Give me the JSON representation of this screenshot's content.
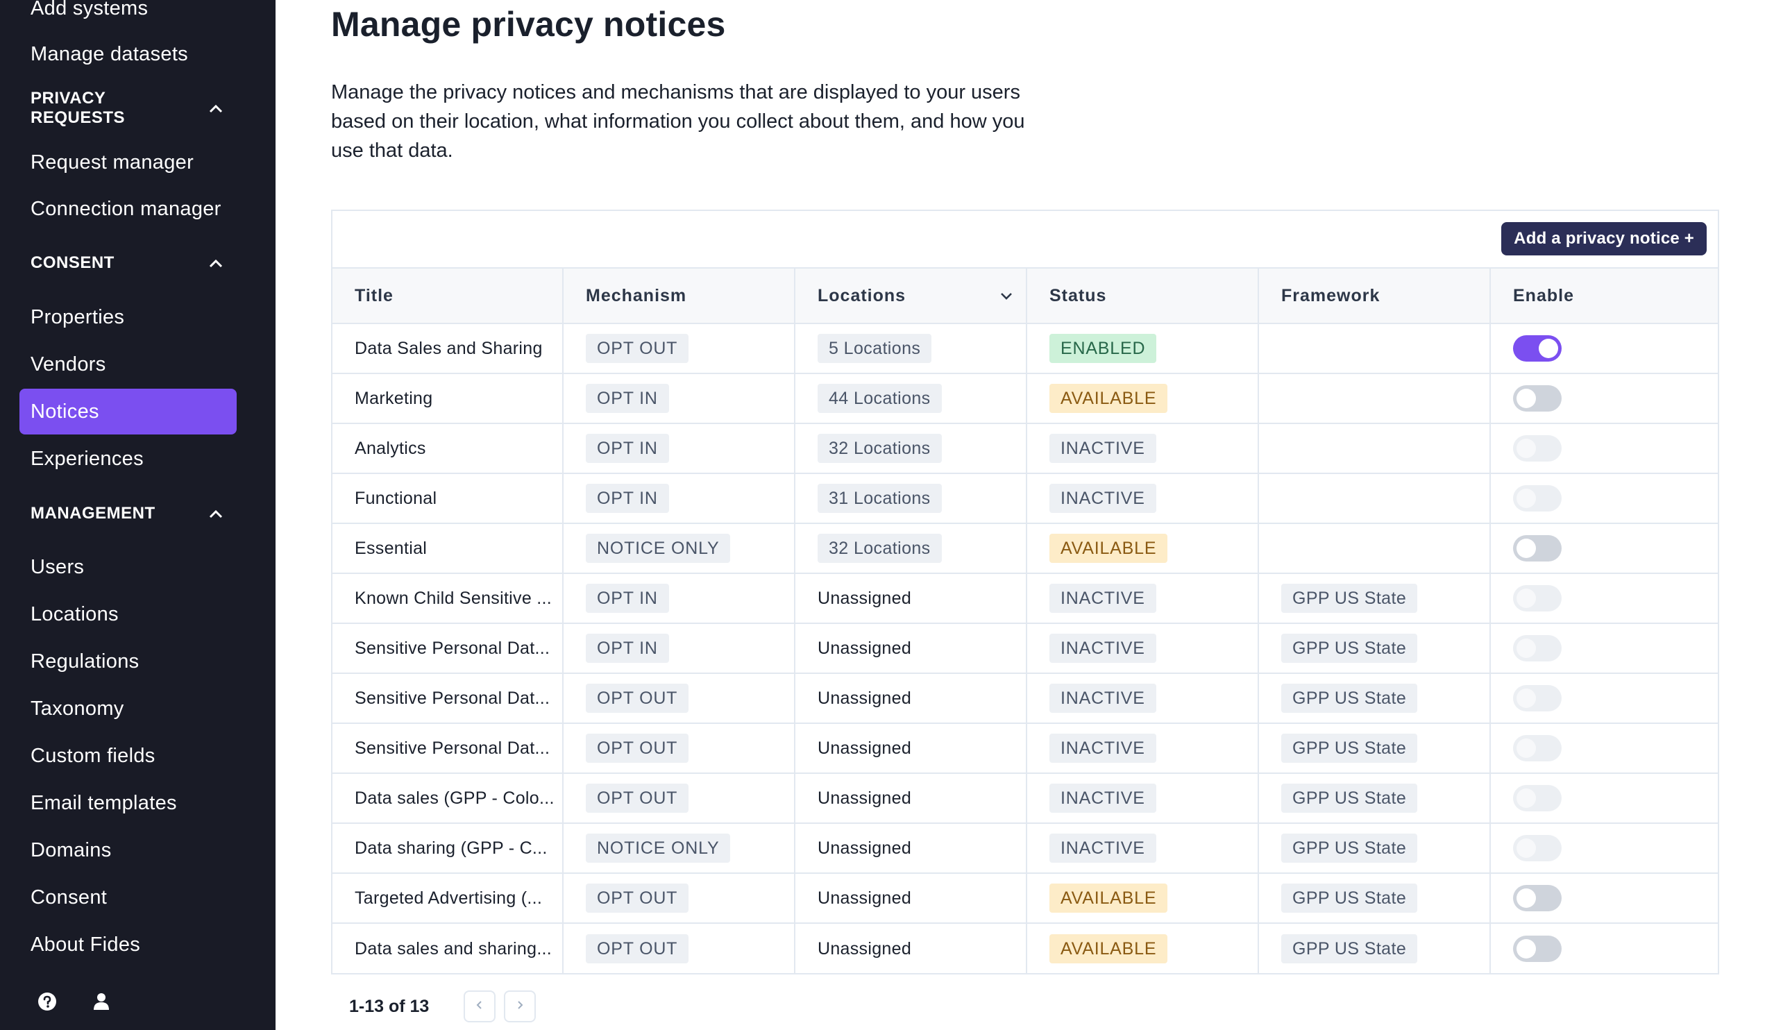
{
  "sidebar": {
    "items_top": [
      {
        "label": "Add systems"
      },
      {
        "label": "Manage datasets"
      }
    ],
    "sections": [
      {
        "title": "PRIVACY REQUESTS",
        "items": [
          {
            "label": "Request manager"
          },
          {
            "label": "Connection manager"
          }
        ]
      },
      {
        "title": "CONSENT",
        "items": [
          {
            "label": "Properties"
          },
          {
            "label": "Vendors"
          },
          {
            "label": "Notices"
          },
          {
            "label": "Experiences"
          }
        ]
      },
      {
        "title": "MANAGEMENT",
        "items": [
          {
            "label": "Users"
          },
          {
            "label": "Locations"
          },
          {
            "label": "Regulations"
          },
          {
            "label": "Taxonomy"
          },
          {
            "label": "Custom fields"
          },
          {
            "label": "Email templates"
          },
          {
            "label": "Domains"
          },
          {
            "label": "Consent"
          },
          {
            "label": "About Fides"
          }
        ]
      }
    ],
    "active_item": "Notices",
    "bottom_icons": [
      "help-icon",
      "user-icon"
    ]
  },
  "main": {
    "title": "Manage privacy notices",
    "description": "Manage the privacy notices and mechanisms that are displayed to your users based on their location, what information you collect about them, and how you use that data.",
    "add_button_label": "Add a privacy notice +",
    "columns": [
      "Title",
      "Mechanism",
      "Locations",
      "Status",
      "Framework",
      "Enable"
    ],
    "rows": [
      {
        "title": "Data Sales and Sharing",
        "mechanism": "OPT OUT",
        "locations": "5 Locations",
        "locations_tag": true,
        "status": "ENABLED",
        "framework": "",
        "enable": "on"
      },
      {
        "title": "Marketing",
        "mechanism": "OPT IN",
        "locations": "44 Locations",
        "locations_tag": true,
        "status": "AVAILABLE",
        "framework": "",
        "enable": "off"
      },
      {
        "title": "Analytics",
        "mechanism": "OPT IN",
        "locations": "32 Locations",
        "locations_tag": true,
        "status": "INACTIVE",
        "framework": "",
        "enable": "disabled"
      },
      {
        "title": "Functional",
        "mechanism": "OPT IN",
        "locations": "31 Locations",
        "locations_tag": true,
        "status": "INACTIVE",
        "framework": "",
        "enable": "disabled"
      },
      {
        "title": "Essential",
        "mechanism": "NOTICE ONLY",
        "locations": "32 Locations",
        "locations_tag": true,
        "status": "AVAILABLE",
        "framework": "",
        "enable": "off"
      },
      {
        "title": "Known Child Sensitive ...",
        "mechanism": "OPT IN",
        "locations": "Unassigned",
        "locations_tag": false,
        "status": "INACTIVE",
        "framework": "GPP US State",
        "enable": "disabled"
      },
      {
        "title": "Sensitive Personal Dat...",
        "mechanism": "OPT IN",
        "locations": "Unassigned",
        "locations_tag": false,
        "status": "INACTIVE",
        "framework": "GPP US State",
        "enable": "disabled"
      },
      {
        "title": "Sensitive Personal Dat...",
        "mechanism": "OPT OUT",
        "locations": "Unassigned",
        "locations_tag": false,
        "status": "INACTIVE",
        "framework": "GPP US State",
        "enable": "disabled"
      },
      {
        "title": "Sensitive Personal Dat...",
        "mechanism": "OPT OUT",
        "locations": "Unassigned",
        "locations_tag": false,
        "status": "INACTIVE",
        "framework": "GPP US State",
        "enable": "disabled"
      },
      {
        "title": "Data sales (GPP - Colo...",
        "mechanism": "OPT OUT",
        "locations": "Unassigned",
        "locations_tag": false,
        "status": "INACTIVE",
        "framework": "GPP US State",
        "enable": "disabled"
      },
      {
        "title": "Data sharing (GPP - C...",
        "mechanism": "NOTICE ONLY",
        "locations": "Unassigned",
        "locations_tag": false,
        "status": "INACTIVE",
        "framework": "GPP US State",
        "enable": "disabled"
      },
      {
        "title": "Targeted Advertising (...",
        "mechanism": "OPT OUT",
        "locations": "Unassigned",
        "locations_tag": false,
        "status": "AVAILABLE",
        "framework": "GPP US State",
        "enable": "off"
      },
      {
        "title": "Data sales and sharing...",
        "mechanism": "OPT OUT",
        "locations": "Unassigned",
        "locations_tag": false,
        "status": "AVAILABLE",
        "framework": "GPP US State",
        "enable": "off"
      }
    ],
    "pagination": {
      "text": "1-13 of 13"
    }
  },
  "colors": {
    "sidebar_bg": "#191b26",
    "accent": "#7b4ff0",
    "button_bg": "#2b2e57",
    "enabled_bg": "#cdf1d9",
    "available_bg": "#fdecc8",
    "neutral_tag_bg": "#edf0f4"
  }
}
